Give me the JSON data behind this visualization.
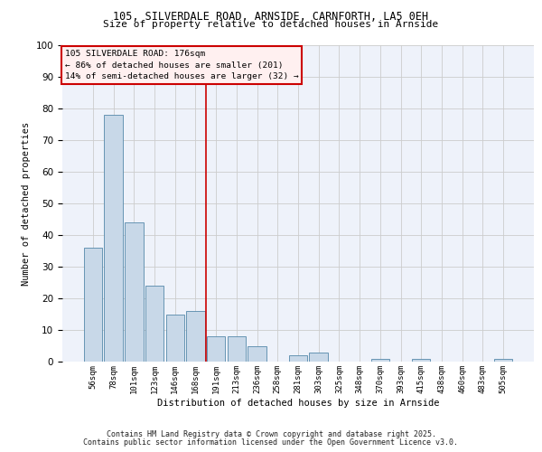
{
  "title1": "105, SILVERDALE ROAD, ARNSIDE, CARNFORTH, LA5 0EH",
  "title2": "Size of property relative to detached houses in Arnside",
  "xlabel": "Distribution of detached houses by size in Arnside",
  "ylabel": "Number of detached properties",
  "categories": [
    "56sqm",
    "78sqm",
    "101sqm",
    "123sqm",
    "146sqm",
    "168sqm",
    "191sqm",
    "213sqm",
    "236sqm",
    "258sqm",
    "281sqm",
    "303sqm",
    "325sqm",
    "348sqm",
    "370sqm",
    "393sqm",
    "415sqm",
    "438sqm",
    "460sqm",
    "483sqm",
    "505sqm"
  ],
  "values": [
    36,
    78,
    44,
    24,
    15,
    16,
    8,
    8,
    5,
    0,
    2,
    3,
    0,
    0,
    1,
    0,
    1,
    0,
    0,
    0,
    1
  ],
  "bar_color": "#c8d8e8",
  "bar_edge_color": "#5588aa",
  "vline_x": 5.5,
  "annotation_lines": [
    "105 SILVERDALE ROAD: 176sqm",
    "← 86% of detached houses are smaller (201)",
    "14% of semi-detached houses are larger (32) →"
  ],
  "annotation_box_color": "#fff0f0",
  "annotation_box_edge": "#cc0000",
  "ylim": [
    0,
    100
  ],
  "yticks": [
    0,
    10,
    20,
    30,
    40,
    50,
    60,
    70,
    80,
    90,
    100
  ],
  "grid_color": "#cccccc",
  "background_color": "#eef2fa",
  "footer1": "Contains HM Land Registry data © Crown copyright and database right 2025.",
  "footer2": "Contains public sector information licensed under the Open Government Licence v3.0."
}
